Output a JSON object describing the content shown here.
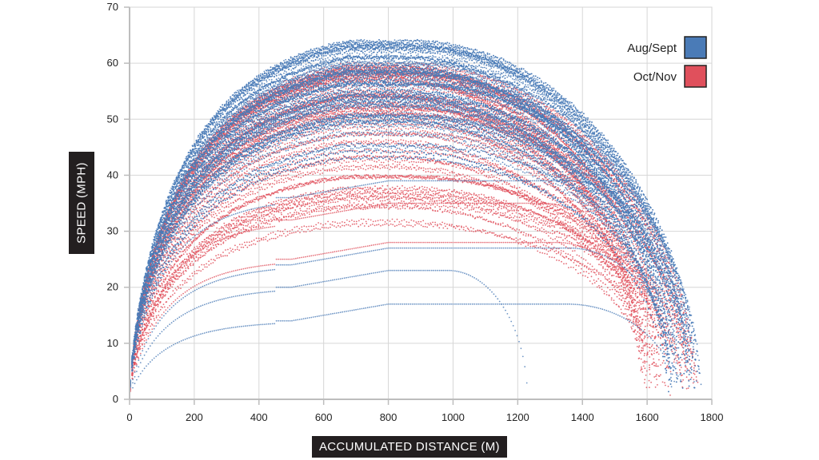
{
  "chart_data": {
    "type": "scatter",
    "xlabel": "ACCUMULATED DISTANCE (M)",
    "ylabel": "SPEED (MPH)",
    "xlim": [
      0,
      1800
    ],
    "ylim": [
      0,
      70
    ],
    "xticks": [
      "0",
      "200",
      "400",
      "600",
      "800",
      "1000",
      "1200",
      "1400",
      "1600",
      "1800"
    ],
    "yticks": [
      "0",
      "10",
      "20",
      "30",
      "40",
      "50",
      "60",
      "70"
    ],
    "grid": true,
    "legend_position": "top-right",
    "series": [
      {
        "name": "Aug/Sept",
        "color": "#4a7bb7",
        "representative_profiles": [
          {
            "peak": 63,
            "end": 1760,
            "cruise": null
          },
          {
            "peak": 61,
            "end": 1740,
            "cruise": null
          },
          {
            "peak": 58,
            "end": 1720,
            "cruise": null
          },
          {
            "peak": 52,
            "end": 1700,
            "cruise": null
          },
          {
            "peak": 36,
            "end": 1720,
            "cruise": 36
          },
          {
            "peak": 24,
            "end": 1700,
            "cruise": 24
          },
          {
            "peak": 20,
            "end": 1230,
            "cruise": 20
          },
          {
            "peak": 14,
            "end": 1690,
            "cruise": 14
          }
        ]
      },
      {
        "name": "Oct/Nov",
        "color": "#e0505c",
        "representative_profiles": [
          {
            "peak": 60,
            "end": 1720,
            "cruise": null
          },
          {
            "peak": 55,
            "end": 1700,
            "cruise": null
          },
          {
            "peak": 48,
            "end": 1690,
            "cruise": null
          },
          {
            "peak": 42,
            "end": 1680,
            "cruise": null
          },
          {
            "peak": 32,
            "end": 1600,
            "cruise": 32
          },
          {
            "peak": 25,
            "end": 1650,
            "cruise": 25
          }
        ]
      }
    ]
  }
}
